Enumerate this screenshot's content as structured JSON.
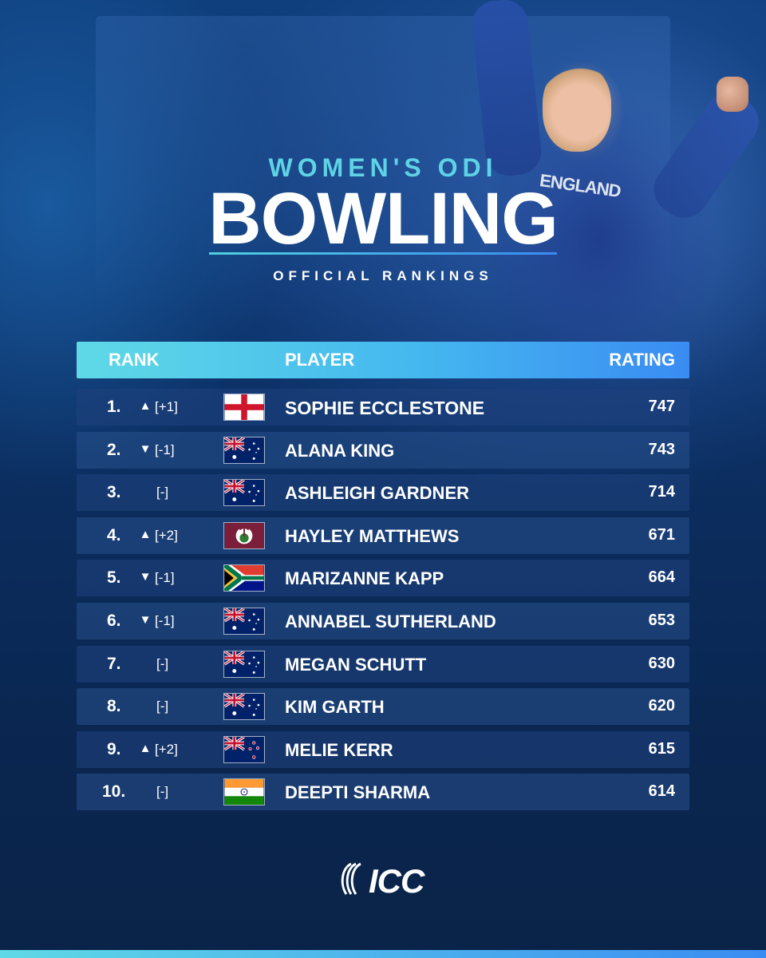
{
  "header": {
    "subtitle": "WOMEN'S ODI",
    "title": "BOWLING",
    "kicker": "OFFICIAL RANKINGS"
  },
  "hero": {
    "shirt_text": "ENGLAND"
  },
  "table": {
    "columns": {
      "rank": "RANK",
      "player": "PLAYER",
      "rating": "RATING"
    },
    "rows": [
      {
        "rank": "1.",
        "arrow": "▲",
        "change": "[+1]",
        "flag": "england-flag-icon",
        "player": "SOPHIE ECCLESTONE",
        "rating": "747"
      },
      {
        "rank": "2.",
        "arrow": "▼",
        "change": "[-1]",
        "flag": "australia-flag-icon",
        "player": "ALANA KING",
        "rating": "743"
      },
      {
        "rank": "3.",
        "arrow": "",
        "change": "[-]",
        "flag": "australia-flag-icon",
        "player": "ASHLEIGH GARDNER",
        "rating": "714"
      },
      {
        "rank": "4.",
        "arrow": "▲",
        "change": "[+2]",
        "flag": "west-indies-flag-icon",
        "player": "HAYLEY MATTHEWS",
        "rating": "671"
      },
      {
        "rank": "5.",
        "arrow": "▼",
        "change": "[-1]",
        "flag": "south-africa-flag-icon",
        "player": "MARIZANNE KAPP",
        "rating": "664"
      },
      {
        "rank": "6.",
        "arrow": "▼",
        "change": "[-1]",
        "flag": "australia-flag-icon",
        "player": "ANNABEL SUTHERLAND",
        "rating": "653"
      },
      {
        "rank": "7.",
        "arrow": "",
        "change": "[-]",
        "flag": "australia-flag-icon",
        "player": "MEGAN SCHUTT",
        "rating": "630"
      },
      {
        "rank": "8.",
        "arrow": "",
        "change": "[-]",
        "flag": "australia-flag-icon",
        "player": "KIM GARTH",
        "rating": "620"
      },
      {
        "rank": "9.",
        "arrow": "▲",
        "change": "[+2]",
        "flag": "new-zealand-flag-icon",
        "player": "MELIE KERR",
        "rating": "615"
      },
      {
        "rank": "10.",
        "arrow": "",
        "change": "[-]",
        "flag": "india-flag-icon",
        "player": "DEEPTI SHARMA",
        "rating": "614"
      }
    ]
  },
  "footer": {
    "logo_text": "ICC",
    "logo_icon": "icc-logo-icon"
  },
  "colors": {
    "accent_cyan": "#5fd9e6",
    "accent_blue": "#3a8cf2",
    "background": "#0b2c5c"
  }
}
